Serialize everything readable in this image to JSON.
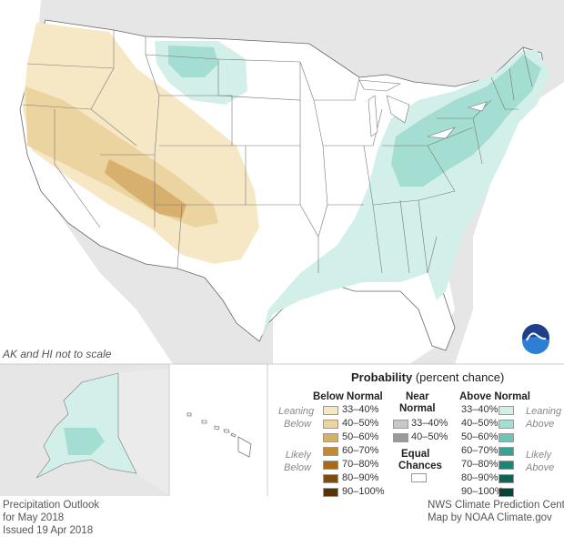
{
  "colors": {
    "below": [
      "#f7e8c5",
      "#ecd4a0",
      "#d8b06e",
      "#c48a33",
      "#a8691a",
      "#7f4c0e",
      "#573205"
    ],
    "near": [
      "#c8c8c8",
      "#9a9a9a"
    ],
    "equal": "#ffffff",
    "above": [
      "#d2efe9",
      "#a4ddd1",
      "#6fc4b4",
      "#3ca394",
      "#1f8474",
      "#0f6455",
      "#02453a"
    ]
  },
  "map": {
    "note": "AK and HI not to scale",
    "logo_text": "NOAA"
  },
  "legend": {
    "title": "Probability",
    "title_suffix": "(percent chance)",
    "below_header": "Below Normal",
    "near_header_1": "Near",
    "near_header_2": "Normal",
    "above_header": "Above Normal",
    "leaning": "Leaning",
    "below_word": "Below",
    "above_word": "Above",
    "likely": "Likely",
    "equal_1": "Equal",
    "equal_2": "Chances",
    "below_ranges": [
      "33–40%",
      "40–50%",
      "50–60%",
      "60–70%",
      "70–80%",
      "80–90%",
      "90–100%"
    ],
    "near_ranges": [
      "33–40%",
      "40–50%"
    ],
    "above_ranges": [
      "33–40%",
      "40–50%",
      "50–60%",
      "60–70%",
      "70–80%",
      "80–90%",
      "90–100%"
    ]
  },
  "footer": {
    "left_1": "Precipitation Outlook",
    "left_2": "for May 2018",
    "left_3": "Issued 19 Apr 2018",
    "right_1": "NWS Climate Prediction Center",
    "right_2": "Map by NOAA Climate.gov"
  }
}
